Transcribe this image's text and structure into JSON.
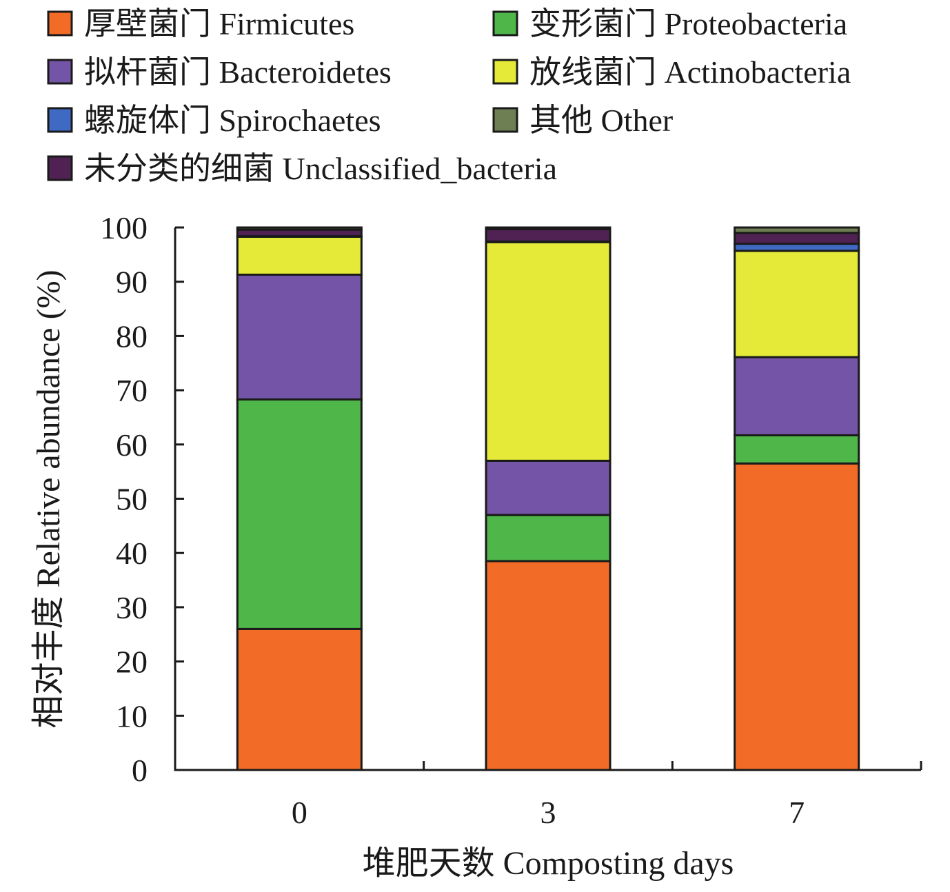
{
  "chart_data": {
    "type": "bar",
    "stacked": true,
    "xlabel": "堆肥天数 Composting days",
    "ylabel": "相对丰度 Relative abundance (%)",
    "ylim": [
      0,
      100
    ],
    "yticks": [
      "0",
      "10",
      "20",
      "30",
      "40",
      "50",
      "60",
      "70",
      "80",
      "90",
      "100"
    ],
    "categories": [
      "0",
      "3",
      "7"
    ],
    "legend_position": "top",
    "series": [
      {
        "name": "厚壁菌门 Firmicutes",
        "color": "#f26c28",
        "values": [
          26.0,
          38.5,
          56.5
        ]
      },
      {
        "name": "变形菌门 Proteobacteria",
        "color": "#4fb649",
        "values": [
          42.3,
          8.5,
          5.2
        ]
      },
      {
        "name": "拟杆菌门 Bacteroidetes",
        "color": "#7454a6",
        "values": [
          23.0,
          10.0,
          14.4
        ]
      },
      {
        "name": "放线菌门 Actinobacteria",
        "color": "#e4ea37",
        "values": [
          7.0,
          40.3,
          19.6
        ]
      },
      {
        "name": "螺旋体门 Spirochaetes",
        "color": "#3e6ac4",
        "values": [
          0.1,
          0.1,
          1.3
        ]
      },
      {
        "name": "未分类的细菌 Unclassified_bacteria",
        "color": "#4f2253",
        "values": [
          1.2,
          2.3,
          2.0
        ]
      },
      {
        "name": "其他 Other",
        "color": "#6e7f53",
        "values": [
          0.4,
          0.3,
          1.0
        ]
      }
    ],
    "legend_order": [
      "厚壁菌门 Firmicutes",
      "变形菌门 Proteobacteria",
      "拟杆菌门 Bacteroidetes",
      "放线菌门 Actinobacteria",
      "螺旋体门 Spirochaetes",
      "其他 Other",
      "未分类的细菌 Unclassified_bacteria"
    ]
  }
}
